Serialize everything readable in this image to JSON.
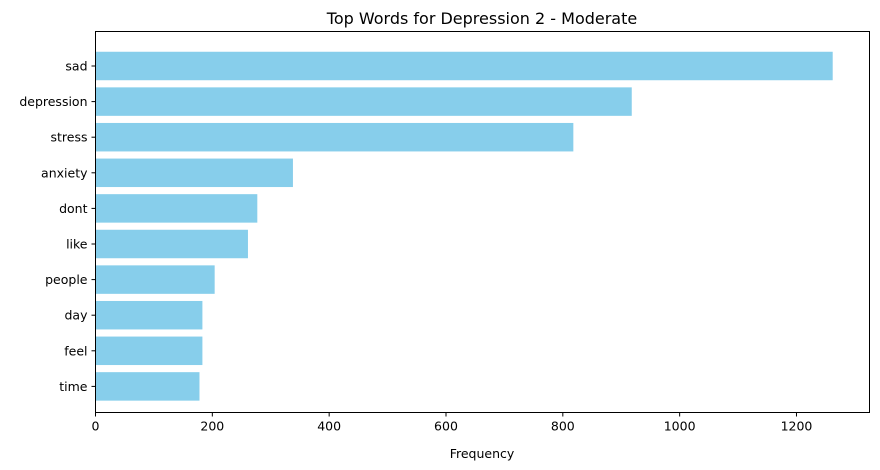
{
  "chart_data": {
    "type": "bar",
    "orientation": "horizontal",
    "title": "Top Words for Depression 2 - Moderate",
    "xlabel": "Frequency",
    "ylabel": "",
    "categories": [
      "sad",
      "depression",
      "stress",
      "anxiety",
      "dont",
      "like",
      "people",
      "day",
      "feel",
      "time"
    ],
    "values": [
      1262,
      918,
      818,
      338,
      277,
      261,
      204,
      183,
      183,
      178
    ],
    "xlim": [
      0,
      1325
    ],
    "xticks": [
      0,
      200,
      400,
      600,
      800,
      1000,
      1200
    ],
    "grid": false,
    "legend": "none",
    "bar_color": "#87ceeb"
  }
}
